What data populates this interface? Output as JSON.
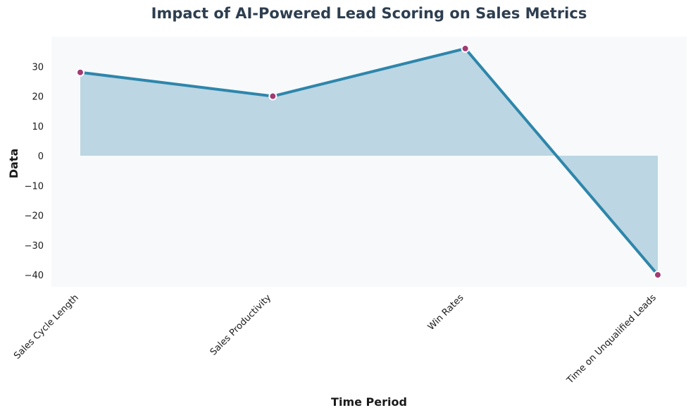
{
  "chart_data": {
    "type": "area",
    "title": "Impact of AI-Powered Lead Scoring on Sales Metrics",
    "xlabel": "Time Period",
    "ylabel": "Data",
    "categories": [
      "Sales Cycle Length",
      "Sales Productivity",
      "Win Rates",
      "Time on Unqualified Leads"
    ],
    "values": [
      28,
      20,
      36,
      -40
    ],
    "ylim": [
      -44,
      40
    ],
    "yticks": [
      30,
      20,
      10,
      0,
      -10,
      -20,
      -30,
      -40
    ],
    "ytick_labels": [
      "30",
      "20",
      "10",
      "0",
      "−10",
      "−20",
      "−30",
      "−40"
    ],
    "grid": false,
    "legend": "none",
    "colors": {
      "line": "#2e86ab",
      "fill": "#a5c8da",
      "marker": "#a23b72",
      "marker_edge": "#ffffff",
      "plot_background": "#f7f9fb",
      "title": "#2d3e50"
    }
  }
}
